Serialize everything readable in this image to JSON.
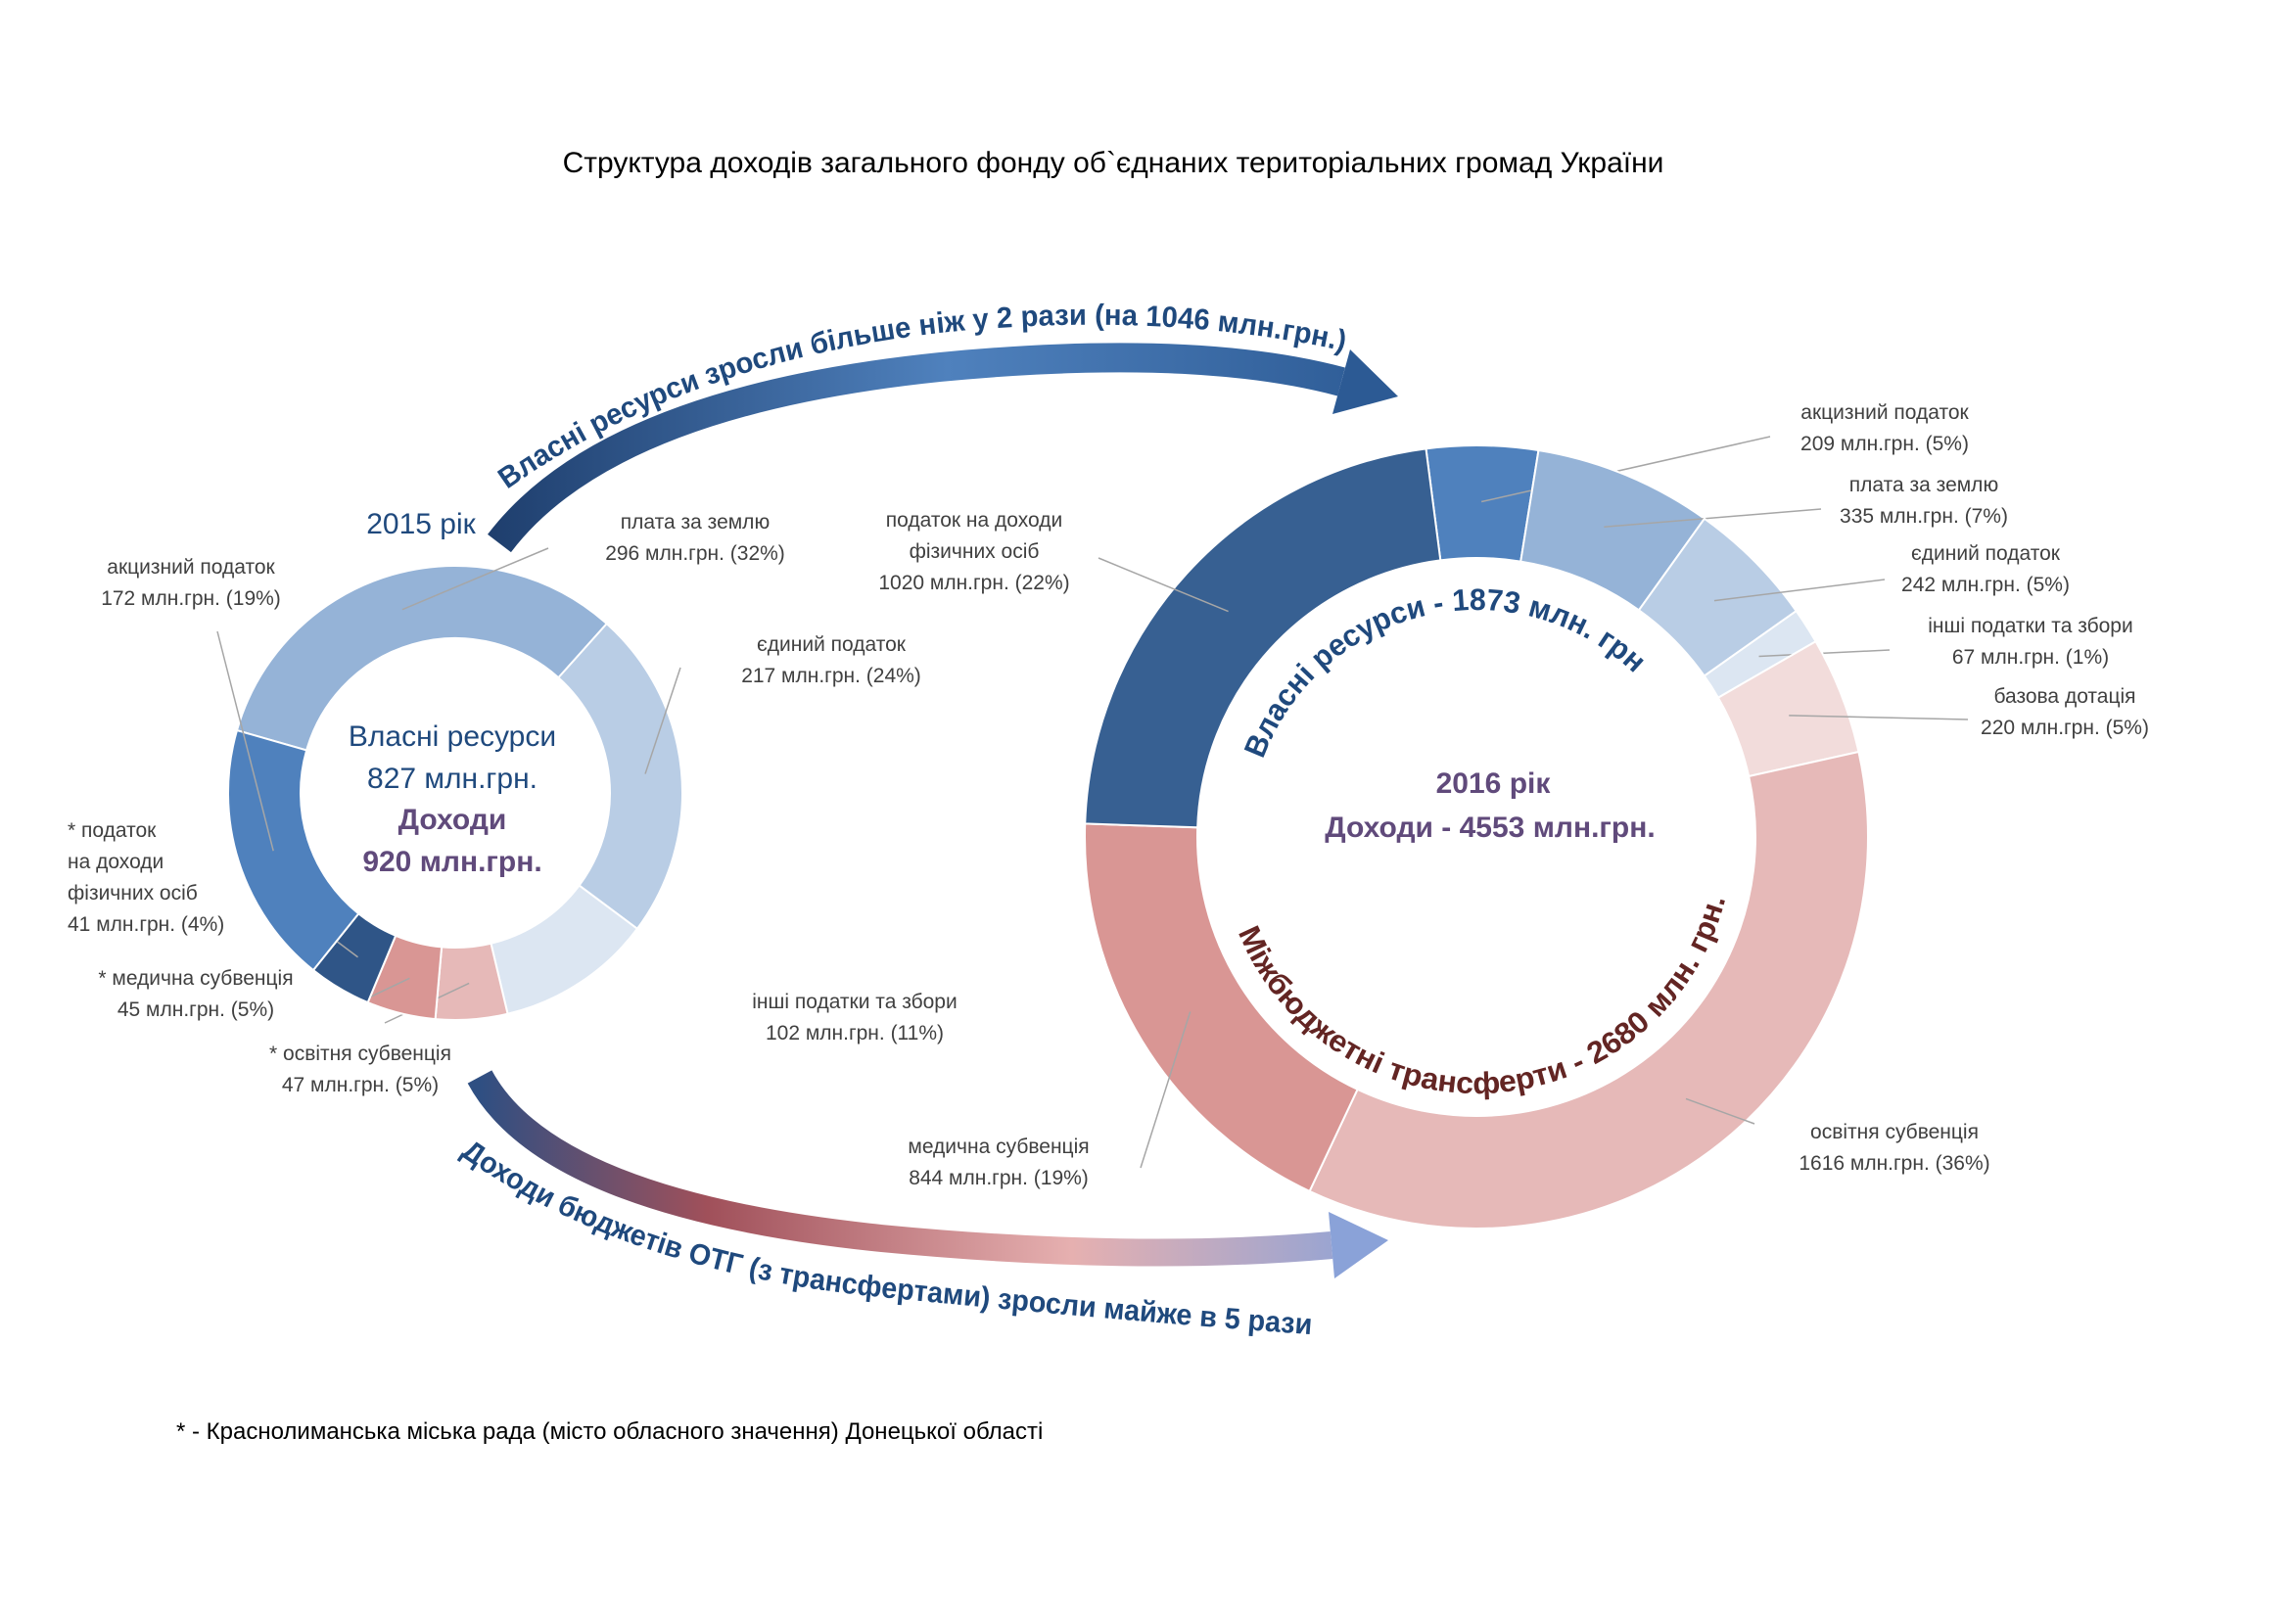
{
  "title": "Структура доходів загального фонду об`єднаних територіальних громад України",
  "annotations": [
    "Власні ресурси зросли більше ніж у 2 рази (на 1046 млн.грн.)",
    "Доходи бюджетів ОТГ (з трансфертами) зросли майже в 5 рази"
  ],
  "footnote": "* - Краснолиманська міська рада (місто обласного значення) Донецької області",
  "chart_data": [
    {
      "type": "donut",
      "title": "2015 рік",
      "center_texts": [
        "Власні ресурси",
        "827 млн.грн.",
        "Доходи",
        "920 млн.грн."
      ],
      "categories": [
        "плата за землю",
        "єдиний податок",
        "інші податки та збори",
        "* освітня субвенція",
        "* медична субвенція",
        "* податок\nна доходи\nфізичних осіб",
        "акцизний податок"
      ],
      "values": [
        296,
        217,
        102,
        47,
        45,
        41,
        172
      ],
      "value_labels": [
        "296 млн.грн. (32%)",
        "217 млн.грн. (24%)",
        "102 млн.грн. (11%)",
        "47 млн.грн. (5%)",
        "45 млн.грн. (5%)",
        "41 млн.грн. (4%)",
        "172 млн.грн. (19%)"
      ],
      "colors": [
        "#95b3d7",
        "#b9cde5",
        "#dce6f2",
        "#e6b9b8",
        "#d99694",
        "#2f5587",
        "#4f81bd"
      ]
    },
    {
      "type": "donut",
      "center_texts": [
        "2016 рік",
        "Доходи - 4553 млн.грн."
      ],
      "group_labels": [
        "Власні ресурси - 1873 млн. грн.",
        "Міжбюджетні трансферти - 2680 млн. грн."
      ],
      "categories": [
        "акцизний податок",
        "плата за землю",
        "єдиний податок",
        "інші податки та збори",
        "базова дотація",
        "освітня субвенція",
        "медична субвенція",
        "податок на доходи\nфізичних осіб"
      ],
      "values": [
        209,
        335,
        242,
        67,
        220,
        1616,
        844,
        1020
      ],
      "value_labels": [
        "209 млн.грн. (5%)",
        "335 млн.грн. (7%)",
        "242 млн.грн. (5%)",
        "67 млн.грн. (1%)",
        "220 млн.грн. (5%)",
        "1616 млн.грн. (36%)",
        "844 млн.грн. (19%)",
        "1020 млн.грн. (22%)"
      ],
      "colors": [
        "#4f81bd",
        "#95b3d7",
        "#b9cde5",
        "#dce6f2",
        "#f2dcdb",
        "#e6b9b8",
        "#d99694",
        "#376092"
      ]
    }
  ]
}
